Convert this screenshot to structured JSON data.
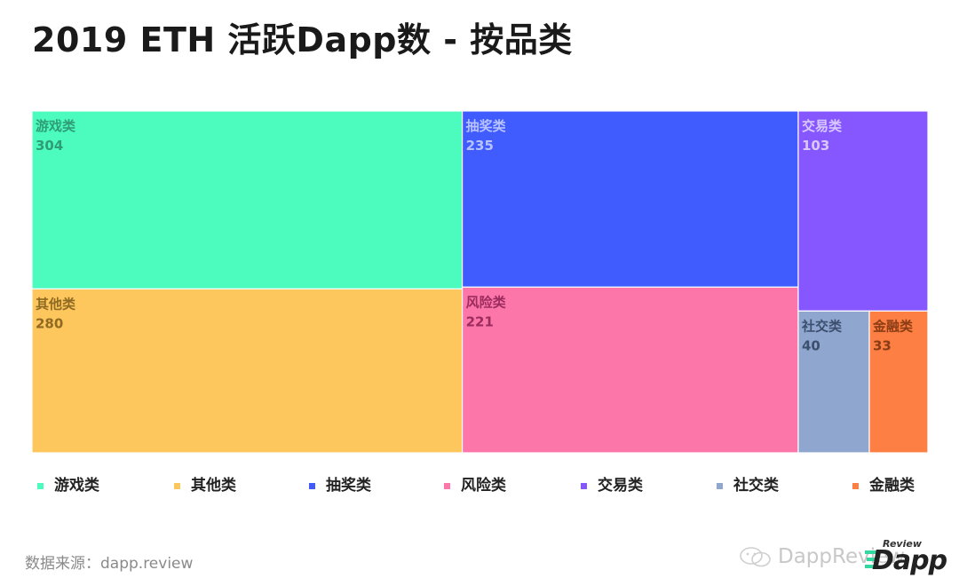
{
  "chart_data": {
    "type": "treemap",
    "title": "2019 ETH 活跃Dapp数 - 按品类",
    "items": [
      {
        "name": "游戏类",
        "value": 304,
        "color": "#4cfcbf",
        "text_color": "#2f9d78"
      },
      {
        "name": "其他类",
        "value": 280,
        "color": "#fdc75d",
        "text_color": "#8f6a22"
      },
      {
        "name": "抽奖类",
        "value": 235,
        "color": "#405cff",
        "text_color": "#b7c2ff"
      },
      {
        "name": "风险类",
        "value": 221,
        "color": "#fd76aa",
        "text_color": "#9c2c5e"
      },
      {
        "name": "交易类",
        "value": 103,
        "color": "#8657ff",
        "text_color": "#d8c8ff"
      },
      {
        "name": "社交类",
        "value": 40,
        "color": "#8fa7cf",
        "text_color": "#3d4f6e"
      },
      {
        "name": "金融类",
        "value": 33,
        "color": "#fd7f43",
        "text_color": "#8a3c14"
      }
    ],
    "legend": [
      "游戏类",
      "其他类",
      "抽奖类",
      "风险类",
      "交易类",
      "社交类",
      "金融类"
    ],
    "legend_position": "bottom"
  },
  "source_text": "数据来源：dapp.review",
  "watermark_text": "DappReview",
  "brand": {
    "review": "Review",
    "dapp": "Dapp"
  }
}
